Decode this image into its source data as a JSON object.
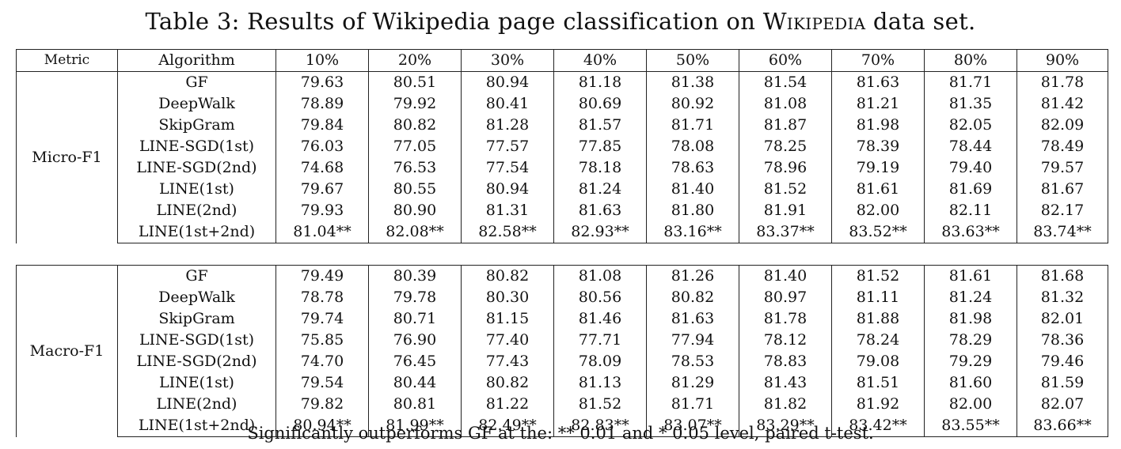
{
  "caption": {
    "prefix": "Table 3: Results of Wikipedia page classification on ",
    "dataset": "Wikipedia",
    "suffix": " data set."
  },
  "header": [
    "Metric",
    "Algorithm",
    "10%",
    "20%",
    "30%",
    "40%",
    "50%",
    "60%",
    "70%",
    "80%",
    "90%"
  ],
  "groups": [
    {
      "metric": "Micro-F1",
      "rows": [
        {
          "algorithm": "GF",
          "values": [
            "79.63",
            "80.51",
            "80.94",
            "81.18",
            "81.38",
            "81.54",
            "81.63",
            "81.71",
            "81.78"
          ],
          "bold": false
        },
        {
          "algorithm": "DeepWalk",
          "values": [
            "78.89",
            "79.92",
            "80.41",
            "80.69",
            "80.92",
            "81.08",
            "81.21",
            "81.35",
            "81.42"
          ],
          "bold": false
        },
        {
          "algorithm": "SkipGram",
          "values": [
            "79.84",
            "80.82",
            "81.28",
            "81.57",
            "81.71",
            "81.87",
            "81.98",
            "82.05",
            "82.09"
          ],
          "bold": false
        },
        {
          "algorithm": "LINE-SGD(1st)",
          "values": [
            "76.03",
            "77.05",
            "77.57",
            "77.85",
            "78.08",
            "78.25",
            "78.39",
            "78.44",
            "78.49"
          ],
          "bold": false
        },
        {
          "algorithm": "LINE-SGD(2nd)",
          "values": [
            "74.68",
            "76.53",
            "77.54",
            "78.18",
            "78.63",
            "78.96",
            "79.19",
            "79.40",
            "79.57"
          ],
          "bold": false
        },
        {
          "algorithm": "LINE(1st)",
          "values": [
            "79.67",
            "80.55",
            "80.94",
            "81.24",
            "81.40",
            "81.52",
            "81.61",
            "81.69",
            "81.67"
          ],
          "bold": false
        },
        {
          "algorithm": "LINE(2nd)",
          "values": [
            "79.93",
            "80.90",
            "81.31",
            "81.63",
            "81.80",
            "81.91",
            "82.00",
            "82.11",
            "82.17"
          ],
          "bold": false
        },
        {
          "algorithm": "LINE(1st+2nd)",
          "values": [
            "81.04**",
            "82.08**",
            "82.58**",
            "82.93**",
            "83.16**",
            "83.37**",
            "83.52**",
            "83.63**",
            "83.74**"
          ],
          "bold": true
        }
      ]
    },
    {
      "metric": "Macro-F1",
      "rows": [
        {
          "algorithm": "GF",
          "values": [
            "79.49",
            "80.39",
            "80.82",
            "81.08",
            "81.26",
            "81.40",
            "81.52",
            "81.61",
            "81.68"
          ],
          "bold": false
        },
        {
          "algorithm": "DeepWalk",
          "values": [
            "78.78",
            "79.78",
            "80.30",
            "80.56",
            "80.82",
            "80.97",
            "81.11",
            "81.24",
            "81.32"
          ],
          "bold": false
        },
        {
          "algorithm": "SkipGram",
          "values": [
            "79.74",
            "80.71",
            "81.15",
            "81.46",
            "81.63",
            "81.78",
            "81.88",
            "81.98",
            "82.01"
          ],
          "bold": false
        },
        {
          "algorithm": "LINE-SGD(1st)",
          "values": [
            "75.85",
            "76.90",
            "77.40",
            "77.71",
            "77.94",
            "78.12",
            "78.24",
            "78.29",
            "78.36"
          ],
          "bold": false
        },
        {
          "algorithm": "LINE-SGD(2nd)",
          "values": [
            "74.70",
            "76.45",
            "77.43",
            "78.09",
            "78.53",
            "78.83",
            "79.08",
            "79.29",
            "79.46"
          ],
          "bold": false
        },
        {
          "algorithm": "LINE(1st)",
          "values": [
            "79.54",
            "80.44",
            "80.82",
            "81.13",
            "81.29",
            "81.43",
            "81.51",
            "81.60",
            "81.59"
          ],
          "bold": false
        },
        {
          "algorithm": "LINE(2nd)",
          "values": [
            "79.82",
            "80.81",
            "81.22",
            "81.52",
            "81.71",
            "81.82",
            "81.92",
            "82.00",
            "82.07"
          ],
          "bold": false
        },
        {
          "algorithm": "LINE(1st+2nd)",
          "values": [
            "80.94**",
            "81.99**",
            "82.49**",
            "82.83**",
            "83.07**",
            "83.29**",
            "83.42**",
            "83.55**",
            "83.66**"
          ],
          "bold": true
        }
      ]
    }
  ],
  "footnote": "Significantly outperforms GF at the: ** 0.01 and * 0.05 level, paired t-test."
}
